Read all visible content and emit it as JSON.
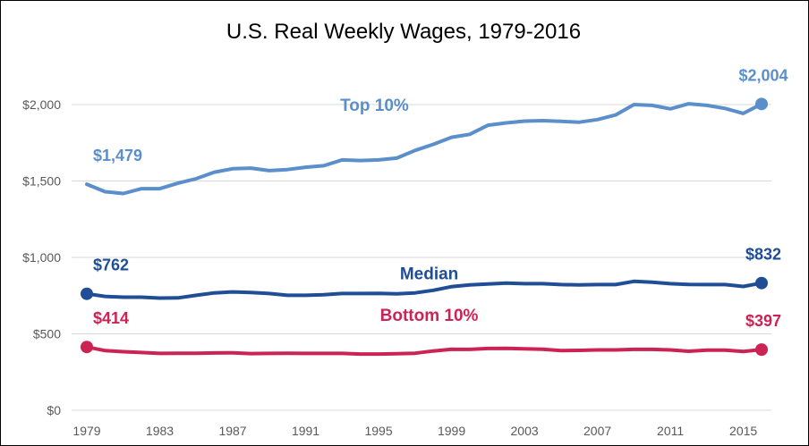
{
  "chart_data": {
    "type": "line",
    "title": "U.S. Real Weekly Wages, 1979-2016",
    "xlabel": "",
    "ylabel": "",
    "xlim": [
      1979,
      2016
    ],
    "ylim": [
      0,
      2000
    ],
    "grid": true,
    "y_ticks": [
      {
        "value": 0,
        "label": "$0"
      },
      {
        "value": 500,
        "label": "$500"
      },
      {
        "value": 1000,
        "label": "$1,000"
      },
      {
        "value": 1500,
        "label": "$1,500"
      },
      {
        "value": 2000,
        "label": "$2,000"
      }
    ],
    "x_ticks": [
      {
        "value": 1979,
        "label": "1979"
      },
      {
        "value": 1983,
        "label": "1983"
      },
      {
        "value": 1987,
        "label": "1987"
      },
      {
        "value": 1991,
        "label": "1991"
      },
      {
        "value": 1995,
        "label": "1995"
      },
      {
        "value": 1999,
        "label": "1999"
      },
      {
        "value": 2003,
        "label": "2003"
      },
      {
        "value": 2007,
        "label": "2007"
      },
      {
        "value": 2011,
        "label": "2011"
      },
      {
        "value": 2015,
        "label": "2015"
      }
    ],
    "x": [
      1979,
      1980,
      1981,
      1982,
      1983,
      1984,
      1985,
      1986,
      1987,
      1988,
      1989,
      1990,
      1991,
      1992,
      1993,
      1994,
      1995,
      1996,
      1997,
      1998,
      1999,
      2000,
      2001,
      2002,
      2003,
      2004,
      2005,
      2006,
      2007,
      2008,
      2009,
      2010,
      2011,
      2012,
      2013,
      2014,
      2015,
      2016
    ],
    "series": [
      {
        "name": "Top 10%",
        "color": "#5b8fcb",
        "start_label": "$1,479",
        "end_label": "$2,004",
        "values": [
          1479,
          1430,
          1418,
          1450,
          1450,
          1486,
          1515,
          1558,
          1580,
          1584,
          1568,
          1575,
          1590,
          1600,
          1638,
          1634,
          1638,
          1650,
          1700,
          1740,
          1786,
          1805,
          1865,
          1880,
          1892,
          1895,
          1890,
          1885,
          1902,
          1932,
          2000,
          1995,
          1972,
          2005,
          1995,
          1975,
          1942,
          2004
        ]
      },
      {
        "name": "Median",
        "color": "#1f4e96",
        "start_label": "$762",
        "end_label": "$832",
        "values": [
          762,
          745,
          740,
          740,
          734,
          735,
          752,
          768,
          774,
          770,
          764,
          752,
          752,
          756,
          764,
          764,
          765,
          762,
          768,
          785,
          809,
          820,
          826,
          832,
          828,
          828,
          822,
          820,
          822,
          822,
          843,
          838,
          828,
          823,
          822,
          822,
          810,
          832
        ]
      },
      {
        "name": "Bottom 10%",
        "color": "#cc2355",
        "start_label": "$414",
        "end_label": "$397",
        "values": [
          414,
          390,
          383,
          378,
          372,
          373,
          373,
          375,
          376,
          371,
          372,
          373,
          372,
          372,
          372,
          368,
          368,
          370,
          373,
          388,
          399,
          398,
          404,
          405,
          402,
          399,
          390,
          392,
          395,
          395,
          398,
          398,
          395,
          386,
          393,
          393,
          385,
          397
        ]
      }
    ]
  }
}
